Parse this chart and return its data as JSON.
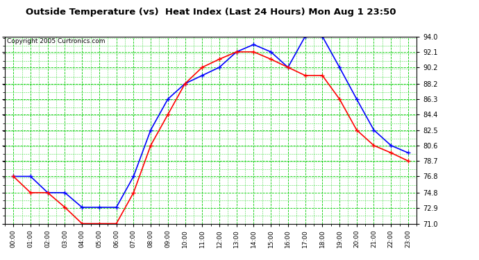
{
  "title": "Outside Temperature (vs)  Heat Index (Last 24 Hours) Mon Aug 1 23:50",
  "copyright": "Copyright 2005 Curtronics.com",
  "x_labels": [
    "00:00",
    "01:00",
    "02:00",
    "03:00",
    "04:00",
    "05:00",
    "06:00",
    "07:00",
    "08:00",
    "09:00",
    "10:00",
    "11:00",
    "12:00",
    "13:00",
    "14:00",
    "15:00",
    "16:00",
    "17:00",
    "18:00",
    "19:00",
    "20:00",
    "21:00",
    "22:00",
    "23:00"
  ],
  "blue_data": [
    76.8,
    76.8,
    74.8,
    74.8,
    73.0,
    73.0,
    73.0,
    76.8,
    82.5,
    86.3,
    88.2,
    89.2,
    90.2,
    92.1,
    93.0,
    92.1,
    90.2,
    94.0,
    94.0,
    90.2,
    86.3,
    82.5,
    80.6,
    79.7
  ],
  "red_data": [
    76.8,
    74.8,
    74.8,
    73.0,
    71.0,
    71.0,
    71.0,
    74.8,
    80.6,
    84.4,
    88.2,
    90.2,
    91.2,
    92.1,
    92.1,
    91.2,
    90.2,
    89.2,
    89.2,
    86.3,
    82.5,
    80.6,
    79.7,
    78.7
  ],
  "ylim": [
    71.0,
    94.0
  ],
  "yticks": [
    71.0,
    72.9,
    74.8,
    76.8,
    78.7,
    80.6,
    82.5,
    84.4,
    86.3,
    88.2,
    90.2,
    92.1,
    94.0
  ],
  "blue_color": "blue",
  "red_color": "red",
  "bg_color": "white",
  "grid_color": "#00cc00",
  "title_fontsize": 9.5,
  "copyright_fontsize": 6.5
}
